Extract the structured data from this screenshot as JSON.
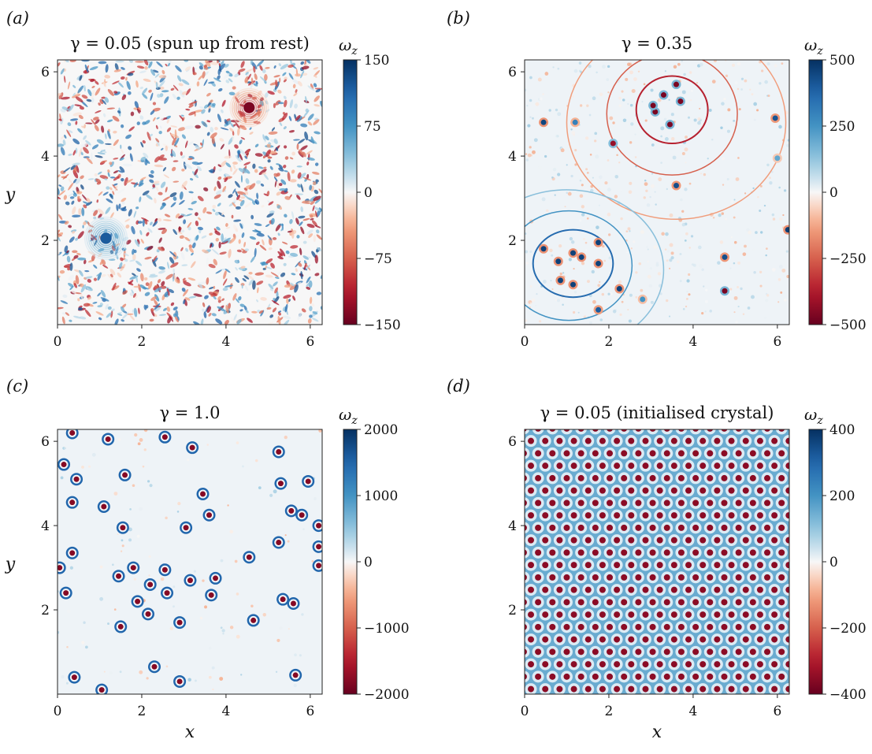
{
  "figure": {
    "x_axis_label": "x",
    "y_axis_label": "y"
  },
  "chart_data": [
    {
      "type": "heatmap",
      "panel_label": "(a)",
      "title": "γ = 0.05 (spun up from rest)",
      "colorbar_label": "ωz",
      "colorbar_ticks": [
        "150",
        "75",
        "0",
        "−75",
        "−150"
      ],
      "clim": [
        -150,
        150
      ],
      "xlim": [
        0,
        6.283
      ],
      "ylim": [
        0,
        6.283
      ],
      "x_ticks": [
        "0",
        "2",
        "4",
        "6"
      ],
      "y_ticks": [
        "2",
        "4",
        "6"
      ],
      "show_xlabel": false,
      "show_ylabel": true,
      "style": "turbulent",
      "vortices": [
        {
          "x": 1.15,
          "y": 2.05,
          "w": 120,
          "r": 0.5
        },
        {
          "x": 4.55,
          "y": 5.15,
          "w": -140,
          "r": 0.45
        }
      ]
    },
    {
      "type": "heatmap",
      "panel_label": "(b)",
      "title": "γ = 0.35",
      "colorbar_label": "ωz",
      "colorbar_ticks": [
        "500",
        "250",
        "0",
        "−250",
        "−500"
      ],
      "clim": [
        -500,
        500
      ],
      "xlim": [
        0,
        6.283
      ],
      "ylim": [
        0,
        6.283
      ],
      "x_ticks": [
        "0",
        "2",
        "4",
        "6"
      ],
      "y_ticks": [
        "2",
        "4",
        "6"
      ],
      "show_xlabel": false,
      "show_ylabel": false,
      "style": "sparse",
      "vortices": [
        {
          "x": 0.45,
          "y": 4.8,
          "w": 450
        },
        {
          "x": 1.2,
          "y": 4.8,
          "w": 300
        },
        {
          "x": 5.95,
          "y": 4.9,
          "w": 420
        },
        {
          "x": 6.0,
          "y": 3.95,
          "w": 200
        },
        {
          "x": 2.1,
          "y": 4.3,
          "w": -420
        },
        {
          "x": 3.6,
          "y": 3.3,
          "w": 430
        },
        {
          "x": 6.25,
          "y": 2.25,
          "w": 470
        },
        {
          "x": 4.75,
          "y": 1.6,
          "w": 430
        },
        {
          "x": 4.75,
          "y": 0.8,
          "w": -470
        },
        {
          "x": 1.75,
          "y": 0.35,
          "w": 400
        },
        {
          "x": 2.25,
          "y": 0.85,
          "w": 460
        },
        {
          "x": 2.8,
          "y": 0.6,
          "w": 250
        },
        {
          "x": 0.45,
          "y": 1.8,
          "w": 460
        },
        {
          "x": 0.8,
          "y": 1.5,
          "w": 460
        },
        {
          "x": 1.35,
          "y": 1.6,
          "w": 460
        },
        {
          "x": 0.85,
          "y": 1.05,
          "w": 460
        },
        {
          "x": 1.15,
          "y": 0.95,
          "w": 460
        },
        {
          "x": 1.75,
          "y": 1.45,
          "w": 460
        },
        {
          "x": 1.75,
          "y": 1.95,
          "w": 460
        },
        {
          "x": 1.15,
          "y": 1.7,
          "w": 460
        },
        {
          "x": 3.1,
          "y": 5.05,
          "w": -470
        },
        {
          "x": 3.3,
          "y": 5.45,
          "w": -470
        },
        {
          "x": 3.6,
          "y": 5.7,
          "w": -470
        },
        {
          "x": 3.7,
          "y": 5.3,
          "w": -470
        },
        {
          "x": 3.45,
          "y": 4.75,
          "w": -470
        },
        {
          "x": 3.05,
          "y": 5.2,
          "w": -470
        }
      ],
      "contours": [
        {
          "x": 3.5,
          "y": 5.1,
          "rx": 0.85,
          "ry": 0.8,
          "sign": -1
        },
        {
          "x": 3.5,
          "y": 5.0,
          "rx": 1.55,
          "ry": 1.45,
          "sign": -1
        },
        {
          "x": 3.6,
          "y": 4.8,
          "rx": 2.6,
          "ry": 2.3,
          "sign": -1
        },
        {
          "x": 1.15,
          "y": 1.45,
          "rx": 0.95,
          "ry": 0.8,
          "sign": 1
        },
        {
          "x": 1.05,
          "y": 1.4,
          "rx": 1.5,
          "ry": 1.3,
          "sign": 1
        },
        {
          "x": 1.0,
          "y": 1.3,
          "rx": 2.3,
          "ry": 1.9,
          "sign": 1
        }
      ]
    },
    {
      "type": "heatmap",
      "panel_label": "(c)",
      "title": "γ = 1.0",
      "colorbar_label": "ωz",
      "colorbar_ticks": [
        "2000",
        "1000",
        "0",
        "−1000",
        "−2000"
      ],
      "clim": [
        -2000,
        2000
      ],
      "xlim": [
        0,
        6.283
      ],
      "ylim": [
        0,
        6.283
      ],
      "x_ticks": [
        "0",
        "2",
        "4",
        "6"
      ],
      "y_ticks": [
        "2",
        "4",
        "6"
      ],
      "show_xlabel": true,
      "show_ylabel": true,
      "style": "dipoles",
      "vortices": [
        {
          "x": 0.35,
          "y": 6.2
        },
        {
          "x": 1.2,
          "y": 6.05
        },
        {
          "x": 2.55,
          "y": 6.1
        },
        {
          "x": 3.2,
          "y": 5.85
        },
        {
          "x": 5.25,
          "y": 5.75
        },
        {
          "x": 0.15,
          "y": 5.45
        },
        {
          "x": 0.45,
          "y": 5.1
        },
        {
          "x": 1.6,
          "y": 5.2
        },
        {
          "x": 5.3,
          "y": 5.0
        },
        {
          "x": 5.95,
          "y": 5.05
        },
        {
          "x": 3.45,
          "y": 4.75
        },
        {
          "x": 0.35,
          "y": 4.55
        },
        {
          "x": 1.1,
          "y": 4.45
        },
        {
          "x": 5.55,
          "y": 4.35
        },
        {
          "x": 5.8,
          "y": 4.25
        },
        {
          "x": 3.6,
          "y": 4.25
        },
        {
          "x": 1.55,
          "y": 3.95
        },
        {
          "x": 3.05,
          "y": 3.95
        },
        {
          "x": 6.2,
          "y": 4.0
        },
        {
          "x": 5.25,
          "y": 3.6
        },
        {
          "x": 6.2,
          "y": 3.5
        },
        {
          "x": 0.35,
          "y": 3.35
        },
        {
          "x": 4.55,
          "y": 3.25
        },
        {
          "x": 0.05,
          "y": 3.0
        },
        {
          "x": 1.8,
          "y": 3.0
        },
        {
          "x": 2.55,
          "y": 2.95
        },
        {
          "x": 1.45,
          "y": 2.8
        },
        {
          "x": 3.15,
          "y": 2.7
        },
        {
          "x": 3.75,
          "y": 2.75
        },
        {
          "x": 6.2,
          "y": 3.05
        },
        {
          "x": 2.2,
          "y": 2.6
        },
        {
          "x": 2.6,
          "y": 2.4
        },
        {
          "x": 0.2,
          "y": 2.4
        },
        {
          "x": 3.65,
          "y": 2.35
        },
        {
          "x": 1.9,
          "y": 2.2
        },
        {
          "x": 5.35,
          "y": 2.25
        },
        {
          "x": 5.6,
          "y": 2.15
        },
        {
          "x": 2.15,
          "y": 1.9
        },
        {
          "x": 2.9,
          "y": 1.7
        },
        {
          "x": 4.65,
          "y": 1.75
        },
        {
          "x": 1.5,
          "y": 1.6
        },
        {
          "x": 0.4,
          "y": 0.4
        },
        {
          "x": 2.3,
          "y": 0.65
        },
        {
          "x": 5.65,
          "y": 0.45
        },
        {
          "x": 2.9,
          "y": 0.3
        },
        {
          "x": 1.05,
          "y": 0.1
        }
      ]
    },
    {
      "type": "heatmap",
      "panel_label": "(d)",
      "title": "γ = 0.05 (initialised crystal)",
      "colorbar_label": "ωz",
      "colorbar_ticks": [
        "400",
        "200",
        "0",
        "−200",
        "−400"
      ],
      "clim": [
        -400,
        400
      ],
      "xlim": [
        0,
        6.283
      ],
      "ylim": [
        0,
        6.283
      ],
      "x_ticks": [
        "0",
        "2",
        "4",
        "6"
      ],
      "y_ticks": [
        "2",
        "4",
        "6"
      ],
      "show_xlabel": true,
      "show_ylabel": false,
      "style": "crystal",
      "lattice_spacing": 0.34
    }
  ]
}
